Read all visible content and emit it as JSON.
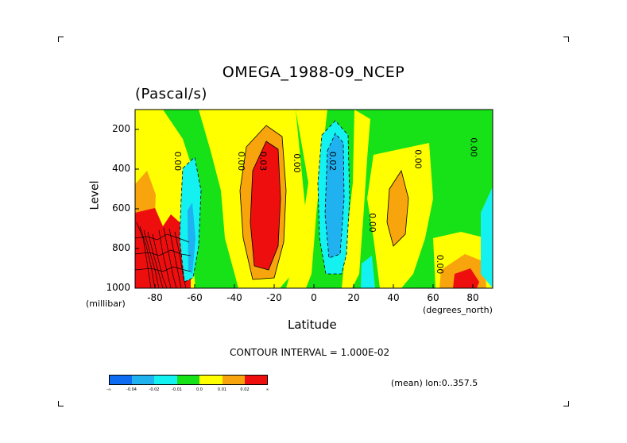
{
  "chart_data": {
    "type": "heatmap",
    "title": "OMEGA_1988-09_NCEP",
    "units": "(Pascal/s)",
    "xlabel": "Latitude",
    "ylabel": "Level",
    "x_unit_label": "(degrees_north)",
    "y_unit_label": "(millibar)",
    "xlim": [
      -90,
      90
    ],
    "ylim": [
      1000,
      100
    ],
    "x_ticks": [
      "-80",
      "-60",
      "-40",
      "-20",
      "0",
      "20",
      "40",
      "60",
      "80"
    ],
    "x_tick_values": [
      -80,
      -60,
      -40,
      -20,
      0,
      20,
      40,
      60,
      80
    ],
    "y_ticks": [
      "200",
      "400",
      "600",
      "800",
      "1000"
    ],
    "y_tick_values": [
      200,
      400,
      600,
      800,
      1000
    ],
    "contour_interval": "CONTOUR INTERVAL = 1.000E-02",
    "mean_note": "(mean) lon:0..357.5",
    "contour_labels": [
      {
        "text": "0.00",
        "lat": -70,
        "lev": 360
      },
      {
        "text": "0.00",
        "lat": -38,
        "lev": 360
      },
      {
        "text": "0.03",
        "lat": -27,
        "lev": 360
      },
      {
        "text": "0.00",
        "lat": -10,
        "lev": 370
      },
      {
        "text": "0.02",
        "lat": 8,
        "lev": 360
      },
      {
        "text": "0.00",
        "lat": 28,
        "lev": 670
      },
      {
        "text": "0.00",
        "lat": 51,
        "lev": 350
      },
      {
        "text": "0.00",
        "lat": 79,
        "lev": 290
      },
      {
        "text": "0.00",
        "lat": 62,
        "lev": 880
      }
    ],
    "legend_levels": [
      "-0.04",
      "-0.02",
      "-0.01",
      "0.0",
      "0.01",
      "0.02"
    ],
    "legend_colors": [
      "#0e6cf2",
      "#1fb1f0",
      "#13f1f1",
      "#17e217",
      "#ffff00",
      "#f8a40c",
      "#ee0e0e"
    ],
    "legend_end_markers": [
      "-∞",
      "∞"
    ]
  }
}
